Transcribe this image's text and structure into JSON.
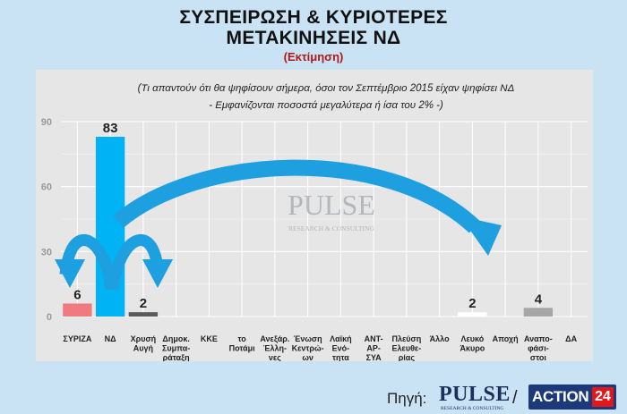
{
  "title_line1": "ΣΥΣΠΕΙΡΩΣΗ & ΚΥΡΙΟΤΕΡΕΣ",
  "title_line2": "ΜΕΤΑΚΙΝΗΣΕΙΣ ΝΔ",
  "subtitle": "(Εκτίμηση)",
  "note_line1": "(Τι απαντούν ότι θα ψηφίσουν σήμερα, όσοι τον Σεπτέμβριο 2015 είχαν ψηφίσει ΝΔ",
  "note_line2": "- Εμφανίζονται ποσοστά μεγαλύτερα ή ίσα του 2% -)",
  "watermark_word": "PULSE",
  "watermark_tag": "RESEARCH & CONSULTING",
  "footer": {
    "source_label": "Πηγή:",
    "pulse_word": "PULSE",
    "pulse_tag": "RESEARCH & CONSULTING",
    "separator": "/",
    "action_word": "ACTION",
    "action_num": "24"
  },
  "colors": {
    "page_bg": "#c9e3f4",
    "panel_bg": "#e6e6e6",
    "arrow": "#1e9fe0",
    "title_red": "#b01818"
  },
  "chart_data": {
    "type": "bar",
    "ylim": [
      0,
      90
    ],
    "yticks": [
      0,
      30,
      60,
      90
    ],
    "grid": true,
    "categories": [
      [
        "ΣΥΡΙΖΑ"
      ],
      [
        "ΝΔ"
      ],
      [
        "Χρυσή",
        "Αυγή"
      ],
      [
        "Δημοκ.",
        "Συμπα-",
        "ράταξη"
      ],
      [
        "ΚΚΕ"
      ],
      [
        "το",
        "Ποτάμι"
      ],
      [
        "Ανεξάρ.",
        "Έλλη-",
        "νες"
      ],
      [
        "Ένωση",
        "Κεντρώ-",
        "ων"
      ],
      [
        "Λαϊκή",
        "Ενό-",
        "τητα"
      ],
      [
        "ΑΝΤ-",
        "ΑΡ-",
        "ΣΥΑ"
      ],
      [
        "Πλεύση",
        "Ελευθε-",
        "ρίας"
      ],
      [
        "Άλλο"
      ],
      [
        "Λευκό",
        "Άκυρο"
      ],
      [
        "Αποχή"
      ],
      [
        "Αναπο-",
        "φάσι-",
        "στοι"
      ],
      [
        "ΔΑ"
      ]
    ],
    "values": [
      6,
      83,
      2,
      null,
      null,
      null,
      null,
      null,
      null,
      null,
      null,
      null,
      2,
      null,
      4,
      null
    ],
    "value_labels": [
      "6",
      "83",
      "2",
      "",
      "",
      "",
      "",
      "",
      "",
      "",
      "",
      "",
      "2",
      "",
      "4",
      ""
    ],
    "bar_colors": [
      "#ef7a80",
      "#00b3f4",
      "#5a5a5a",
      "#cccccc",
      "#cccccc",
      "#cccccc",
      "#cccccc",
      "#cccccc",
      "#cccccc",
      "#cccccc",
      "#cccccc",
      "#cccccc",
      "#ffffff",
      "#cccccc",
      "#a6a6a6",
      "#cccccc"
    ]
  }
}
